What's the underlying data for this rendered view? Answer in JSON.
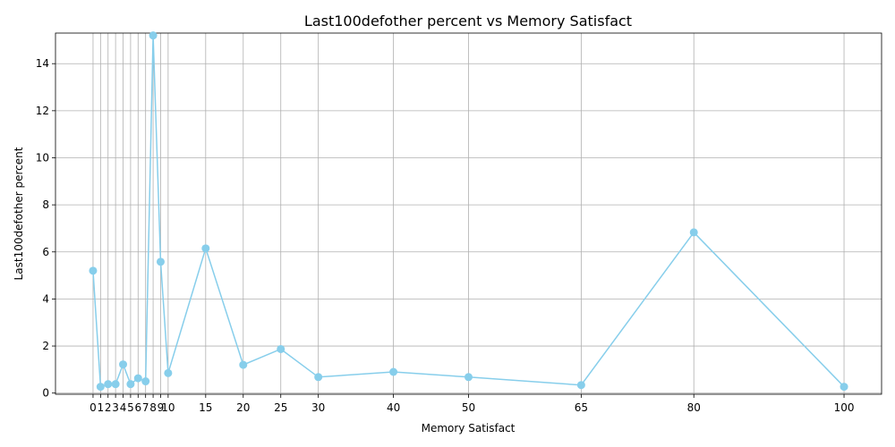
{
  "chart_data": {
    "type": "line",
    "title": "Last100defother percent vs Memory Satisfact",
    "xlabel": "Memory Satisfact",
    "ylabel": "Last100defother percent",
    "x": [
      0,
      1,
      2,
      3,
      4,
      5,
      6,
      7,
      8,
      9,
      10,
      15,
      20,
      25,
      30,
      40,
      50,
      65,
      80,
      100
    ],
    "series": [
      {
        "values": [
          5.2,
          0.27,
          0.38,
          0.38,
          1.22,
          0.38,
          0.63,
          0.5,
          15.2,
          5.58,
          0.85,
          6.15,
          1.2,
          1.87,
          0.68,
          0.9,
          0.68,
          0.34,
          6.83,
          0.27
        ]
      }
    ],
    "xticks": [
      0,
      1,
      2,
      3,
      4,
      5,
      6,
      7,
      8,
      9,
      10,
      15,
      20,
      25,
      30,
      40,
      50,
      65,
      80,
      100
    ],
    "yticks": [
      0,
      2,
      4,
      6,
      8,
      10,
      12,
      14
    ],
    "xlim": [
      -5,
      105
    ],
    "ylim": [
      -0.05,
      15.3
    ],
    "grid": true,
    "marker": "circle",
    "color": "#87ceeb"
  }
}
